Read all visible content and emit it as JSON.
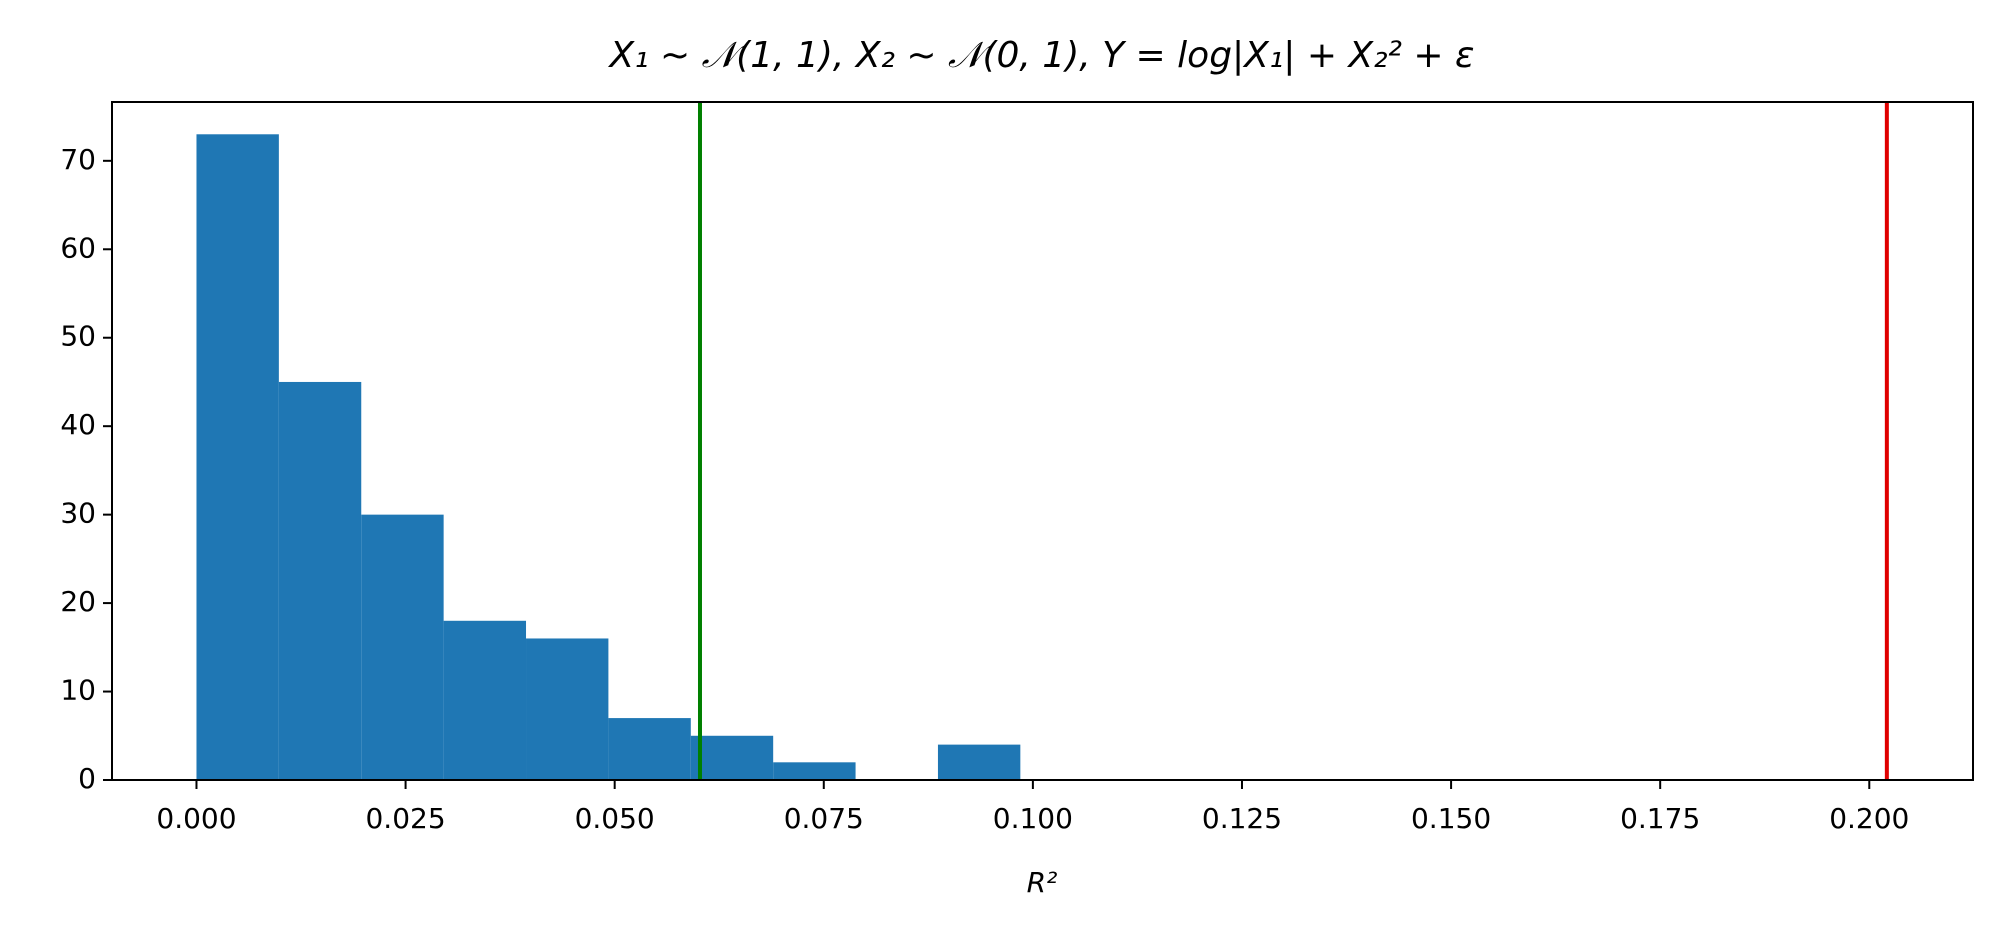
{
  "chart_data": {
    "type": "histogram",
    "title": "X₁ ~ 𝒩(1, 1), X₂ ~ 𝒩(0, 1), Y = log|X₁| + X₂² + ε",
    "x_label": "R²",
    "bins": [
      0,
      0.00985,
      0.0197,
      0.02955,
      0.0394,
      0.04925,
      0.0591,
      0.06895,
      0.0788,
      0.08865,
      0.0985
    ],
    "counts": [
      73,
      45,
      30,
      18,
      16,
      7,
      5,
      2,
      0,
      4
    ],
    "color": "#1f77b4",
    "vlines": [
      {
        "x": 0.0602,
        "color": "#008000"
      },
      {
        "x": 0.2021,
        "color": "#e00000"
      }
    ],
    "xlim": [
      -0.0101,
      0.2124
    ],
    "ylim": [
      0,
      76.65
    ],
    "xticks": [
      {
        "value": 0,
        "label": "0.000"
      },
      {
        "value": 0.025,
        "label": "0.025"
      },
      {
        "value": 0.05,
        "label": "0.050"
      },
      {
        "value": 0.075,
        "label": "0.075"
      },
      {
        "value": 0.1,
        "label": "0.100"
      },
      {
        "value": 0.125,
        "label": "0.125"
      },
      {
        "value": 0.15,
        "label": "0.150"
      },
      {
        "value": 0.175,
        "label": "0.175"
      },
      {
        "value": 0.2,
        "label": "0.200"
      }
    ],
    "yticks": [
      0,
      10,
      20,
      30,
      40,
      50,
      60,
      70
    ]
  }
}
